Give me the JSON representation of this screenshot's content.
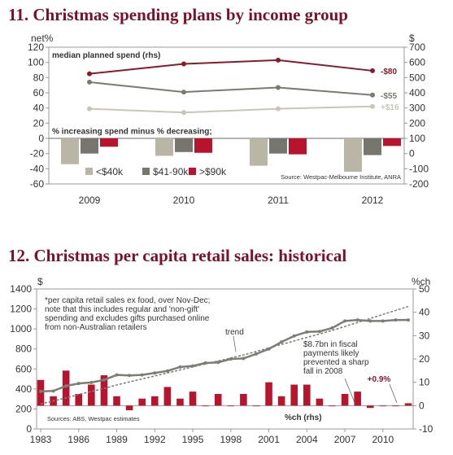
{
  "chart_data": [
    {
      "type": "line+bar",
      "title": "11. Christmas spending plans by income group",
      "left_axis_unit": "net%",
      "right_axis_unit": "$",
      "left_ylim": [
        -60,
        120
      ],
      "left_ticks": [
        "120",
        "100",
        "80",
        "60",
        "40",
        "20",
        "0",
        "-20",
        "-40",
        "-60"
      ],
      "right_ylim": [
        -200,
        700
      ],
      "right_ticks": [
        "700",
        "600",
        "500",
        "400",
        "300",
        "200",
        "100",
        "0",
        "-100",
        "-200"
      ],
      "categories": [
        "2009",
        "2010",
        "2011",
        "2012"
      ],
      "line_panel_label": "median planned spend (rhs)",
      "bar_panel_label": "% increasing spend minus % decreasing;",
      "lines": [
        {
          "name": ">$90k",
          "color": "#8b1a2e",
          "values": [
            85,
            98,
            103,
            89
          ],
          "end_label": "-$80"
        },
        {
          "name": "$41-90k",
          "color": "#7a7a72",
          "values": [
            74,
            61,
            67,
            57
          ],
          "end_label": "-$55"
        },
        {
          "name": "<$40k",
          "color": "#c9c6b8",
          "values": [
            39,
            34,
            39,
            42
          ],
          "end_label": "+$16"
        }
      ],
      "bars": [
        {
          "name": "<$40k",
          "color": "#b9b6a6",
          "values": [
            -34,
            -23,
            -36,
            -44
          ]
        },
        {
          "name": "$41-90k",
          "color": "#76766e",
          "values": [
            -20,
            -18,
            -20,
            -22
          ]
        },
        {
          "name": ">$90k",
          "color": "#b8142e",
          "values": [
            -11,
            -19,
            -21,
            -10
          ]
        }
      ],
      "legend": [
        "<$40k",
        "$41-90k",
        ">$90k"
      ],
      "source": "Source: Westpac-Melbourne Institute, ANRA"
    },
    {
      "type": "line+bar",
      "title": "12. Christmas per capita retail sales: historical",
      "left_axis_unit": "$",
      "right_axis_unit": "%ch",
      "left_ylim": [
        0,
        1400
      ],
      "left_ticks": [
        "1400",
        "1200",
        "1000",
        "800",
        "600",
        "400",
        "200",
        "0"
      ],
      "right_ylim": [
        -10,
        50
      ],
      "right_ticks": [
        "50",
        "40",
        "30",
        "20",
        "10",
        "0",
        "-10"
      ],
      "x_ticks": [
        "1983",
        "1986",
        "1989",
        "1992",
        "1995",
        "1998",
        "2001",
        "2004",
        "2007",
        "2010"
      ],
      "years": [
        1983,
        1984,
        1985,
        1986,
        1987,
        1988,
        1989,
        1990,
        1991,
        1992,
        1993,
        1994,
        1995,
        1996,
        1997,
        1998,
        1999,
        2000,
        2001,
        2002,
        2003,
        2004,
        2005,
        2006,
        2007,
        2008,
        2009,
        2010,
        2011,
        2012
      ],
      "sales": [
        375,
        380,
        430,
        455,
        465,
        490,
        540,
        535,
        540,
        560,
        580,
        620,
        630,
        660,
        665,
        700,
        705,
        750,
        800,
        870,
        930,
        970,
        975,
        1010,
        1080,
        1090,
        1080,
        1080,
        1090,
        1090
      ],
      "trend": [
        250,
        280,
        310,
        345,
        375,
        405,
        440,
        470,
        500,
        530,
        560,
        590,
        620,
        650,
        680,
        710,
        740,
        775,
        810,
        845,
        880,
        915,
        950,
        985,
        1025,
        1065,
        1105,
        1145,
        1185,
        1225
      ],
      "pct_change": [
        11,
        4,
        15,
        5,
        9,
        13,
        4,
        -2,
        3,
        4,
        8,
        3,
        6,
        0,
        5,
        0,
        5,
        0,
        10,
        4,
        9,
        9,
        3,
        0,
        5,
        6,
        -1,
        0,
        0,
        1
      ],
      "trend_label": "trend",
      "pct_label": "%ch (rhs)",
      "note": [
        "*per capita retail sales ex food, over Nov-Dec;",
        "note that this includes regular and 'non-gift'",
        "spending and excludes gifts purchased online",
        "from non-Australian retailers"
      ],
      "annotation": [
        "$8.7bn in fiscal",
        "payments likely",
        "prevented a sharp",
        "fall in 2008"
      ],
      "last_change_label": "+0.9%",
      "source": "Sources: ABS, Westpac estimates",
      "sales_color": "#7d7d75",
      "bar_color": "#b8142e"
    }
  ]
}
